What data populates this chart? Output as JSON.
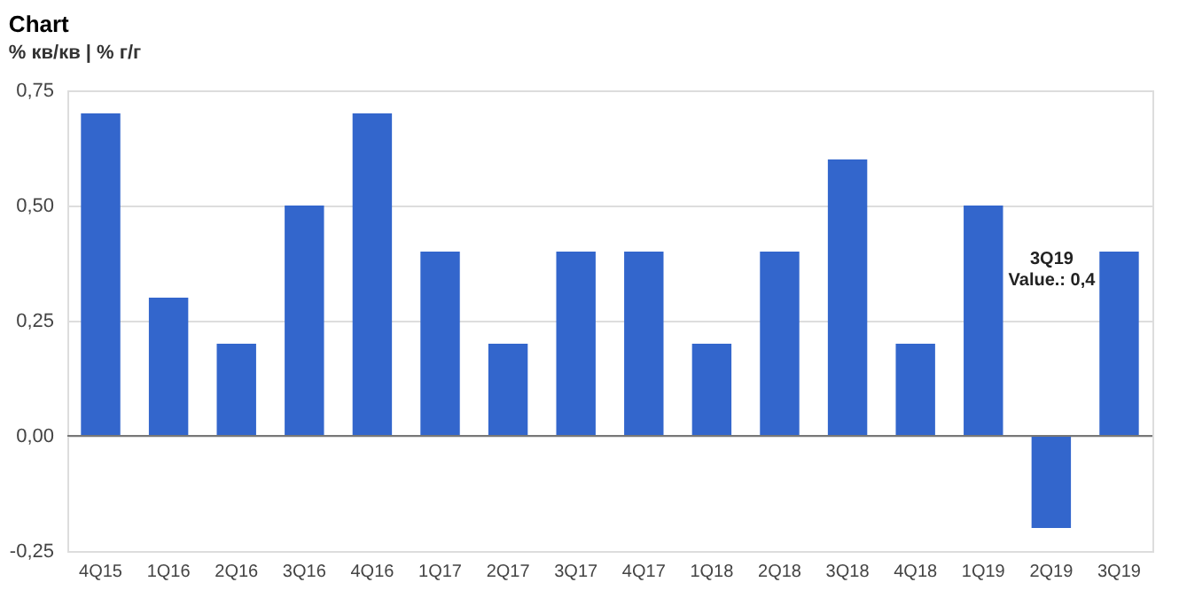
{
  "chart_data": {
    "type": "bar",
    "title": "Chart",
    "categories": [
      "4Q15",
      "1Q16",
      "2Q16",
      "3Q16",
      "4Q16",
      "1Q17",
      "2Q17",
      "3Q17",
      "4Q17",
      "1Q18",
      "2Q18",
      "3Q18",
      "4Q18",
      "1Q19",
      "2Q19",
      "3Q19"
    ],
    "values": [
      0.7,
      0.3,
      0.2,
      0.5,
      0.7,
      0.4,
      0.2,
      0.4,
      0.4,
      0.2,
      0.4,
      0.6,
      0.2,
      0.5,
      -0.2,
      0.4
    ],
    "color": "#3366cc",
    "ylim": [
      -0.25,
      0.75
    ],
    "yticks": [
      {
        "value": -0.25,
        "label": "-0,25"
      },
      {
        "value": 0,
        "label": "0,00"
      },
      {
        "value": 0.25,
        "label": "0,25"
      },
      {
        "value": 0.5,
        "label": "0,50"
      },
      {
        "value": 0.75,
        "label": "0,75"
      }
    ],
    "grid": "y",
    "annotations": [
      "% кв/кв | % г/г",
      {
        "text": "3Q19\nValue.: 0,4",
        "x": "3Q19",
        "y": 0.4
      }
    ]
  }
}
